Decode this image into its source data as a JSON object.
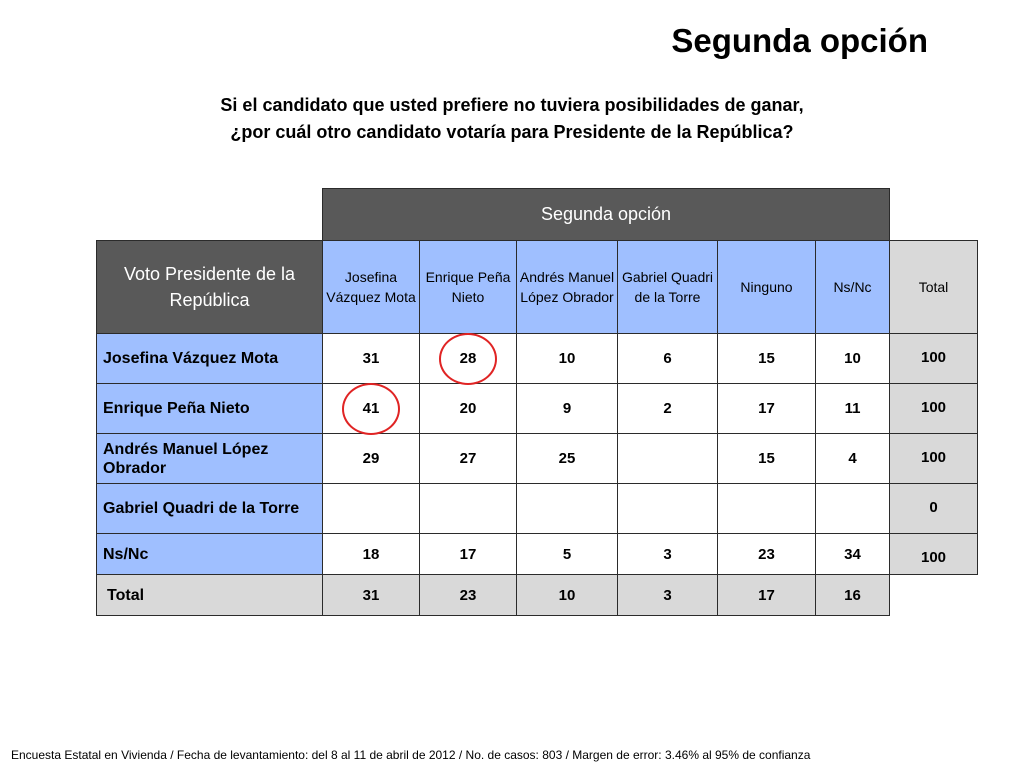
{
  "page": {
    "title": "Segunda opción",
    "question_line1": "Si el candidato que usted prefiere no tuviera posibilidades de ganar,",
    "question_line2": "¿por cuál otro candidato votaría para Presidente de la República?",
    "footer": "Encuesta Estatal en Vivienda / Fecha de levantamiento: del  8 al 11 de abril de 2012 / No. de casos: 803 / Margen de error: 3.46% al 95% de confianza"
  },
  "table": {
    "group_header": "Segunda opción",
    "row_header": "Voto Presidente de la República",
    "columns": [
      "Josefina Vázquez Mota",
      "Enrique Peña Nieto",
      "Andrés Manuel López Obrador",
      "Gabriel Quadri de la Torre",
      "Ninguno",
      "Ns/Nc"
    ],
    "total_header": "Total",
    "rows": [
      {
        "label": "Josefina Vázquez Mota",
        "values": [
          "31",
          "28",
          "10",
          "6",
          "15",
          "10"
        ],
        "total": "100"
      },
      {
        "label": "Enrique Peña Nieto",
        "values": [
          "41",
          "20",
          "9",
          "2",
          "17",
          "11"
        ],
        "total": "100"
      },
      {
        "label": "Andrés Manuel López Obrador",
        "values": [
          "29",
          "27",
          "25",
          "",
          "15",
          "4"
        ],
        "total": "100"
      },
      {
        "label": "Gabriel Quadri de la Torre",
        "values": [
          "",
          "",
          "",
          "",
          "",
          ""
        ],
        "total": "0"
      },
      {
        "label": "Ns/Nc",
        "values": [
          "18",
          "17",
          "5",
          "3",
          "23",
          "34"
        ],
        "total": "100"
      }
    ],
    "total_row": {
      "label": "Total",
      "values": [
        "31",
        "23",
        "10",
        "3",
        "17",
        "16"
      ]
    },
    "highlighted_cells": [
      {
        "row": "Josefina Vázquez Mota",
        "column": "Enrique Peña Nieto",
        "value": "28"
      },
      {
        "row": "Enrique Peña Nieto",
        "column": "Josefina Vázquez Mota",
        "value": "41"
      }
    ]
  },
  "colors": {
    "header_dark": "#595959",
    "header_blue": "#9fbfff",
    "total_grey": "#d9d9d9",
    "highlight_circle": "#e02424"
  }
}
